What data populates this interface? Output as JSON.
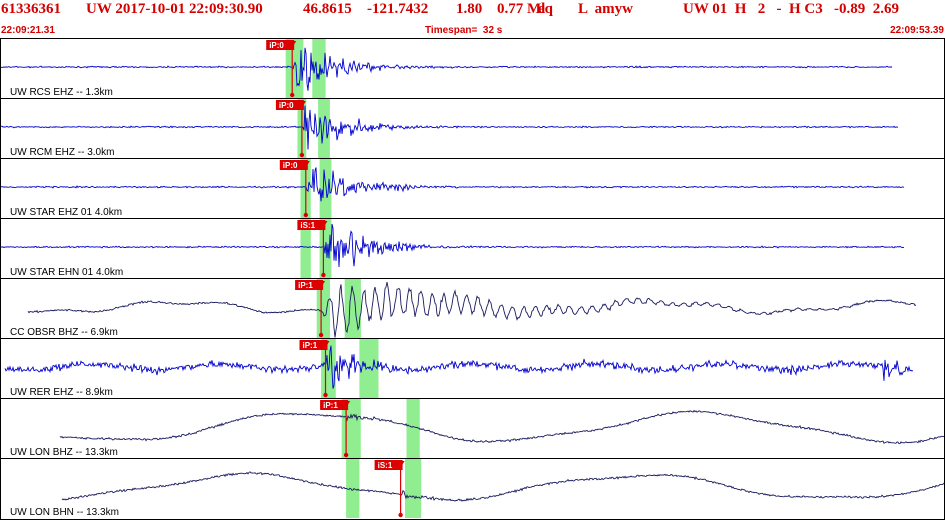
{
  "header": {
    "event_id": "61336361",
    "network": "UW",
    "datetime": "2017-10-01 22:09:30.90",
    "latitude": "46.8615",
    "longitude": "-121.7432",
    "depth": "1.80",
    "magnitude": "0.77 Ml",
    "event_type": "eq",
    "origin_flags": "L  amyw",
    "network_info": "UW 01  H   2   -  H C3",
    "metric_1": "-0.89",
    "metric_2": "2.69",
    "start_time": "22:09:21.31",
    "timespan": "Timespan=  32 s",
    "end_time": "22:09:53.39"
  },
  "colors": {
    "header_text": "#d40000",
    "trace_blue": "#0000cc",
    "trace_dark": "#1a1a5e",
    "pick_flag": "#dd0000",
    "window_green": "#90ee90",
    "panel_border": "#000000"
  },
  "time_axis": {
    "start_s": 0,
    "end_s": 32.08
  },
  "traces": [
    {
      "label": "UW RCS EHZ -- 1.3km",
      "phase": "iP:0",
      "pick_s": 9.92,
      "windows": [
        [
          9.7,
          10.3
        ],
        [
          10.6,
          11.05
        ]
      ],
      "color": "blue",
      "style": "local_event",
      "amp": 0.28,
      "end_s": 30.3
    },
    {
      "label": "UW RCM EHZ -- 3.0km",
      "phase": "iP:0",
      "pick_s": 10.25,
      "windows": [
        [
          10.1,
          10.4
        ],
        [
          10.8,
          11.2
        ]
      ],
      "color": "blue",
      "style": "local_event",
      "amp": 0.3,
      "end_s": 30.5
    },
    {
      "label": "UW STAR EHZ 01 4.0km",
      "phase": "iP:0",
      "pick_s": 10.38,
      "windows": [
        [
          10.2,
          10.55
        ],
        [
          10.85,
          11.25
        ]
      ],
      "color": "blue",
      "style": "local_event",
      "amp": 0.3,
      "end_s": 30.7
    },
    {
      "label": "UW STAR EHN 01 4.0km",
      "phase": "iS:1",
      "pick_s": 10.98,
      "windows": [
        [
          10.2,
          10.55
        ],
        [
          10.85,
          11.25
        ]
      ],
      "color": "blue",
      "style": "local_event",
      "amp": 0.32,
      "end_s": 30.7
    },
    {
      "label": "CC OBSR BHZ -- 6.9km",
      "phase": "iP:1",
      "pick_s": 10.9,
      "windows": [
        [
          10.75,
          11.2
        ],
        [
          11.7,
          12.25
        ]
      ],
      "color": "dark",
      "style": "broadband",
      "amp": 0.45,
      "end_s": 31.1
    },
    {
      "label": "UW RER EHZ -- 8.9km",
      "phase": "iP:1",
      "pick_s": 11.05,
      "windows": [
        [
          10.9,
          11.4
        ],
        [
          12.2,
          12.85
        ]
      ],
      "color": "blue",
      "style": "noisy",
      "amp": 0.38,
      "end_s": 31.0
    },
    {
      "label": "UW LON BHZ -- 13.3km",
      "phase": "iP:1",
      "pick_s": 11.75,
      "windows": [
        [
          11.6,
          12.25
        ],
        [
          13.8,
          14.25
        ]
      ],
      "color": "dark",
      "style": "long_period",
      "amp": 0.42,
      "end_s": 32.08
    },
    {
      "label": "UW LON BHN -- 13.3km",
      "phase": "iS:1",
      "pick_s": 13.6,
      "windows": [
        [
          11.75,
          12.2
        ],
        [
          13.75,
          14.3
        ]
      ],
      "color": "dark",
      "style": "long_period",
      "amp": 0.36,
      "end_s": 32.08
    }
  ]
}
